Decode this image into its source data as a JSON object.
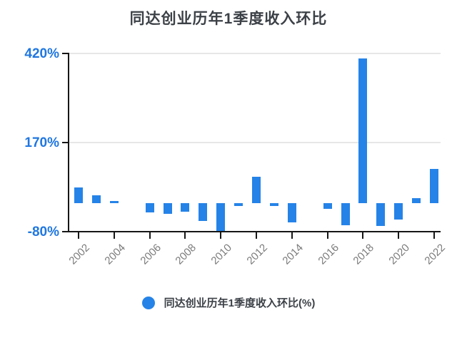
{
  "title": "同达创业历年1季度收入环比",
  "legend": {
    "label": "同达创业历年1季度收入环比(%)"
  },
  "colors": {
    "bar": "#2583e8",
    "y_axis_label": "#2077e0",
    "title_text": "#3c4147",
    "x_axis_label": "#7b7b7b",
    "gridline": "#e7e7e7",
    "axis_line": "#161616"
  },
  "chart_data": {
    "type": "bar",
    "title": "同达创业历年1季度收入环比",
    "categories": [
      2002,
      2003,
      2004,
      2005,
      2006,
      2007,
      2008,
      2009,
      2010,
      2011,
      2012,
      2013,
      2014,
      2015,
      2016,
      2017,
      2018,
      2019,
      2020,
      2021,
      2022
    ],
    "values": [
      44,
      22,
      7,
      0,
      -25,
      -30,
      -23,
      -50,
      -78,
      -7,
      74,
      -7,
      -54,
      0,
      -15,
      -62,
      407,
      -63,
      -45,
      14,
      97
    ],
    "series_name": "同达创业历年1季度收入环比(%)",
    "unit": "%",
    "ylim": [
      -80,
      420
    ],
    "y_ticks": [
      420,
      170,
      -80
    ],
    "y_tick_labels": [
      "420%",
      "170%",
      "-80%"
    ],
    "x_tick_years": [
      2002,
      2004,
      2006,
      2008,
      2010,
      2012,
      2014,
      2016,
      2018,
      2020,
      2022
    ],
    "x_tick_labels": [
      "2002",
      "2004",
      "2006",
      "2008",
      "2010",
      "2012",
      "2014",
      "2016",
      "2018",
      "2020",
      "2022"
    ],
    "x_label_rotation_deg": 45,
    "grid": "horizontal-only",
    "legend_position": "bottom"
  }
}
